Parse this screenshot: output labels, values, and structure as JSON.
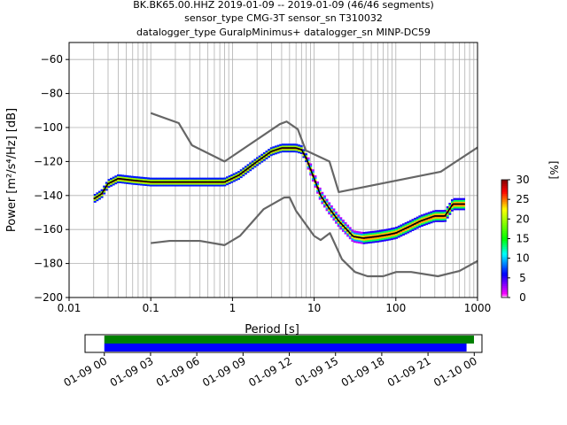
{
  "title_lines": [
    "BK.BK65.00.HHZ   2019-01-09 -- 2019-01-09  (46/46 segments)",
    "sensor_type CMG-3T sensor_sn T310032",
    "datalogger_type GuralpMinimus+ datalogger_sn MINP-DC59"
  ],
  "chart_data": [
    {
      "type": "heatmap",
      "xlabel": "Period [s]",
      "ylabel": "Power [m²/s⁴/Hz] [dB]",
      "x_scale": "log",
      "xlim": [
        0.01,
        1000
      ],
      "ylim": [
        -200,
        -50
      ],
      "grid": true,
      "x_tick_labels": [
        "0.01",
        "0.1",
        "1",
        "10",
        "100",
        "1000"
      ],
      "x_tick_values": [
        0.01,
        0.1,
        1,
        10,
        100,
        1000
      ],
      "y_tick_labels": [
        "−60",
        "−80",
        "−100",
        "−120",
        "−140",
        "−160",
        "−180",
        "−200"
      ],
      "y_tick_values": [
        -60,
        -80,
        -100,
        -120,
        -140,
        -160,
        -180,
        -200
      ],
      "colorbar": {
        "label": "[%]",
        "range": [
          0,
          30
        ],
        "tick_labels": [
          "0",
          "5",
          "10",
          "15",
          "20",
          "25",
          "30"
        ],
        "tick_values": [
          0,
          5,
          10,
          15,
          20,
          25,
          30
        ]
      },
      "colors": {
        "high_noise_model": "#666666",
        "low_noise_model": "#666666",
        "mode_line": "#000000",
        "grid": "#b0b0b0"
      },
      "series": [
        {
          "period": [
            0.1,
            0.22,
            0.32,
            0.8,
            3.8,
            4.6,
            6.3,
            7.9,
            15.4,
            20,
            354.8,
            10000
          ],
          "power": [
            -91.5,
            -97.4,
            -110.5,
            -120,
            -98,
            -96.5,
            -101,
            -113.5,
            -120,
            -138,
            -126,
            -80
          ]
        },
        {
          "period": [
            0.1,
            0.17,
            0.4,
            0.8,
            1.24,
            2.4,
            4.3,
            5,
            6,
            10,
            12,
            15.6,
            21.9,
            31.6,
            45,
            70,
            101,
            154,
            328,
            600,
            10000
          ],
          "power": [
            -168,
            -166.7,
            -166.7,
            -169.2,
            -163.7,
            -148.1,
            -141.2,
            -141.1,
            -149,
            -163.8,
            -166.2,
            -162.1,
            -177.5,
            -185,
            -187.5,
            -187.5,
            -185,
            -185,
            -187.5,
            -184.4,
            -151.9
          ]
        },
        {
          "period": [
            0.02,
            0.025,
            0.03,
            0.04,
            0.06,
            0.1,
            0.2,
            0.3,
            0.5,
            0.8,
            1.2,
            2,
            3,
            4,
            6,
            7,
            8,
            10,
            12,
            15,
            20,
            30,
            40,
            60,
            80,
            100,
            150,
            200,
            300,
            400,
            500,
            600,
            700
          ],
          "power": [
            -142,
            -139,
            -133,
            -130,
            -131,
            -132,
            -132,
            -132,
            -132,
            -132,
            -128,
            -120,
            -114,
            -112,
            -112,
            -113,
            -118,
            -130,
            -140,
            -147,
            -155,
            -164,
            -165,
            -164,
            -163,
            -162,
            -158,
            -155,
            -152,
            -152,
            -145,
            -145,
            -145
          ]
        }
      ]
    },
    {
      "type": "timeline",
      "x_tick_labels": [
        "01-09 00",
        "01-09 03",
        "01-09 06",
        "01-09 09",
        "01-09 12",
        "01-09 15",
        "01-09 18",
        "01-09 21",
        "01-10 00"
      ],
      "x_tick_values": [
        "2019-01-09 00:00",
        "2019-01-09 03:00",
        "2019-01-09 06:00",
        "2019-01-09 09:00",
        "2019-01-09 12:00",
        "2019-01-09 15:00",
        "2019-01-09 18:00",
        "2019-01-09 21:00",
        "2019-01-10 00:00"
      ],
      "xlim": [
        "2019-01-08 22:45",
        "2019-01-10 00:30"
      ],
      "series": [
        {
          "color": "#008000",
          "start": "2019-01-09 00:00",
          "end": "2019-01-09 23:59"
        },
        {
          "color": "#0000ff",
          "start": "2019-01-09 00:00",
          "end": "2019-01-09 23:30"
        }
      ]
    }
  ]
}
